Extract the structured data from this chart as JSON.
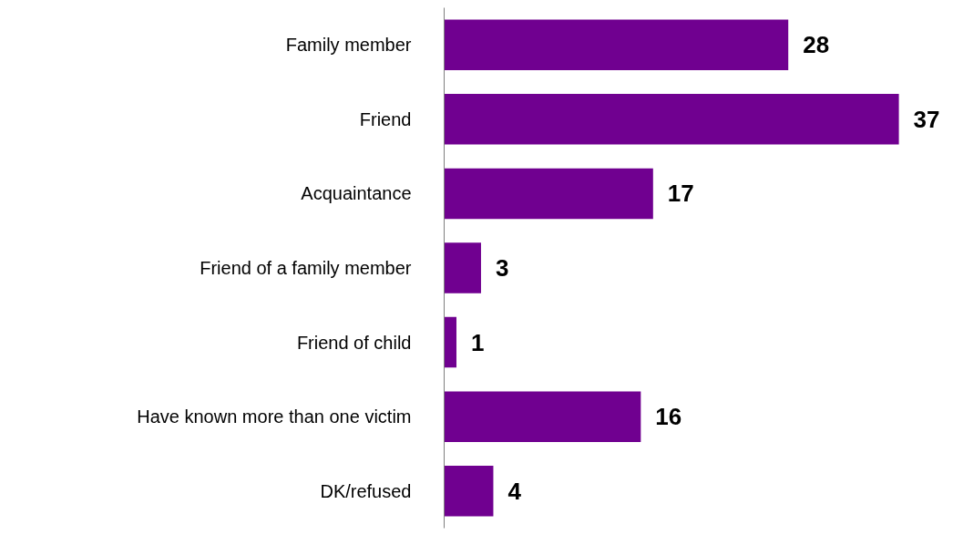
{
  "chart_data": {
    "type": "bar",
    "orientation": "horizontal",
    "categories": [
      "Family member",
      "Friend",
      "Acquaintance",
      "Friend of a family member",
      "Friend of child",
      "Have known more than one victim",
      "DK/refused"
    ],
    "values": [
      28,
      37,
      17,
      3,
      1,
      16,
      4
    ],
    "color": "#700090",
    "data_labels": true,
    "tick_labels": "y",
    "grid": false
  }
}
